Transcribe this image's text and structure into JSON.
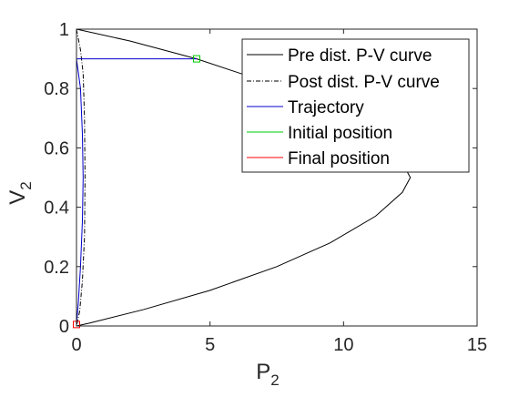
{
  "chart_data": {
    "type": "line",
    "xlabel": {
      "main": "P",
      "sub": "2"
    },
    "ylabel": {
      "main": "V",
      "sub": "2"
    },
    "xlim": [
      0,
      15
    ],
    "ylim": [
      0,
      1
    ],
    "xticks": [
      0,
      5,
      10,
      15
    ],
    "yticks": [
      0,
      0.2,
      0.4,
      0.6,
      0.8,
      1
    ],
    "xtick_labels": [
      "0",
      "5",
      "10",
      "15"
    ],
    "ytick_labels": [
      "0",
      "0.2",
      "0.4",
      "0.6",
      "0.8",
      "1"
    ],
    "grid": false,
    "legend_position": "top-right",
    "series": [
      {
        "name": "Pre dist. P-V curve",
        "color": "#000000",
        "style": "solid",
        "points": [
          [
            0,
            1
          ],
          [
            2.0,
            0.96
          ],
          [
            4.5,
            0.9
          ],
          [
            6.5,
            0.84
          ],
          [
            8.3,
            0.78
          ],
          [
            10.0,
            0.7
          ],
          [
            11.3,
            0.62
          ],
          [
            12.2,
            0.55
          ],
          [
            12.5,
            0.5
          ],
          [
            12.2,
            0.45
          ],
          [
            11.2,
            0.37
          ],
          [
            9.5,
            0.28
          ],
          [
            7.5,
            0.2
          ],
          [
            5.0,
            0.12
          ],
          [
            2.5,
            0.055
          ],
          [
            0.5,
            0.01
          ],
          [
            0,
            0
          ]
        ]
      },
      {
        "name": "Post dist. P-V curve",
        "color": "#000000",
        "style": "dashdot",
        "points": [
          [
            0,
            1
          ],
          [
            0.15,
            0.93
          ],
          [
            0.25,
            0.85
          ],
          [
            0.3,
            0.7
          ],
          [
            0.32,
            0.5
          ],
          [
            0.3,
            0.3
          ],
          [
            0.22,
            0.15
          ],
          [
            0.12,
            0.05
          ],
          [
            0,
            0
          ]
        ]
      },
      {
        "name": "Trajectory",
        "color": "#0000cc",
        "style": "solid",
        "points": [
          [
            4.5,
            0.9
          ],
          [
            0,
            0.9
          ],
          [
            0.15,
            0.8
          ],
          [
            0.22,
            0.65
          ],
          [
            0.25,
            0.5
          ],
          [
            0.22,
            0.35
          ],
          [
            0.15,
            0.2
          ],
          [
            0.07,
            0.08
          ],
          [
            0,
            0.005
          ]
        ]
      }
    ],
    "markers": [
      {
        "name": "Initial position",
        "color": "#00cc00",
        "shape": "square",
        "x": 4.5,
        "y": 0.9
      },
      {
        "name": "Final position",
        "color": "#ff0000",
        "shape": "square",
        "x": 0,
        "y": 0.005
      }
    ],
    "legend": [
      {
        "label": "Pre dist. P-V curve",
        "color": "#000000",
        "style": "solid"
      },
      {
        "label": "Post dist. P-V curve",
        "color": "#000000",
        "style": "dashdot"
      },
      {
        "label": "Trajectory",
        "color": "#0000cc",
        "style": "solid"
      },
      {
        "label": "Initial position",
        "color": "#00cc00",
        "style": "solid"
      },
      {
        "label": "Final position",
        "color": "#ff0000",
        "style": "solid"
      }
    ]
  }
}
